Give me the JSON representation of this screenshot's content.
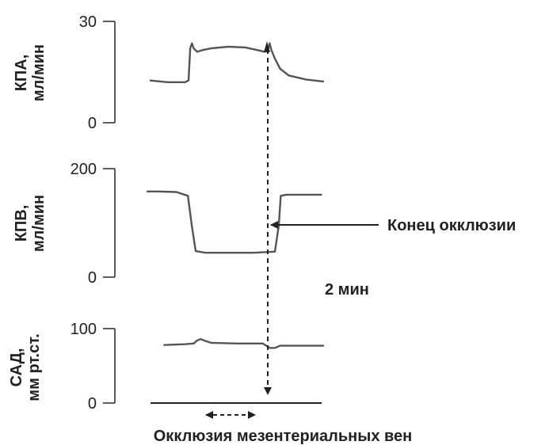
{
  "chart_data": [
    {
      "type": "line",
      "ylabel": [
        "КПА,",
        "мл/мин"
      ],
      "ylim": [
        0,
        30
      ],
      "ytick_labels": [
        "30",
        "0"
      ],
      "series": [
        {
          "x": [
            0,
            0.1,
            0.2,
            0.22,
            0.23,
            0.24,
            0.25,
            0.27,
            0.3,
            0.35,
            0.45,
            0.55,
            0.62,
            0.66,
            0.68,
            0.69,
            0.7,
            0.72,
            0.75,
            0.8,
            0.9,
            1.0
          ],
          "values": [
            12.5,
            12.0,
            12.0,
            12.5,
            22.0,
            23.5,
            22.0,
            21.0,
            21.5,
            22.0,
            22.5,
            22.3,
            21.5,
            21.0,
            21.5,
            23.5,
            21.5,
            19.0,
            16.0,
            14.0,
            12.8,
            12.2
          ]
        }
      ]
    },
    {
      "type": "line",
      "ylabel": [
        "КПВ,",
        "мл/мин"
      ],
      "ylim": [
        0,
        200
      ],
      "ytick_labels": [
        "200",
        "0"
      ],
      "series": [
        {
          "x": [
            0,
            0.05,
            0.15,
            0.21,
            0.23,
            0.25,
            0.3,
            0.4,
            0.55,
            0.66,
            0.68,
            0.69,
            0.72,
            0.8,
            0.9
          ],
          "values": [
            158,
            158,
            157,
            150,
            95,
            48,
            45,
            45,
            45,
            47,
            95,
            150,
            152,
            152,
            152
          ]
        }
      ]
    },
    {
      "type": "line",
      "ylabel": [
        "САД,",
        "мм рт.ст."
      ],
      "ylim": [
        0,
        100
      ],
      "ytick_labels": [
        "100",
        "0"
      ],
      "series": [
        {
          "x": [
            0.08,
            0.2,
            0.25,
            0.27,
            0.29,
            0.31,
            0.35,
            0.5,
            0.65,
            0.67,
            0.69,
            0.72,
            0.75,
            0.85,
            1.0
          ],
          "values": [
            78,
            79,
            80,
            84,
            86,
            84,
            81,
            80,
            80,
            77,
            74,
            74,
            77,
            77,
            77
          ]
        }
      ]
    }
  ],
  "annotations": {
    "end_occlusion": "Конец окклюзии",
    "time_scale": "2 мин",
    "occlusion": "Окклюзия мезентериальных вен"
  }
}
